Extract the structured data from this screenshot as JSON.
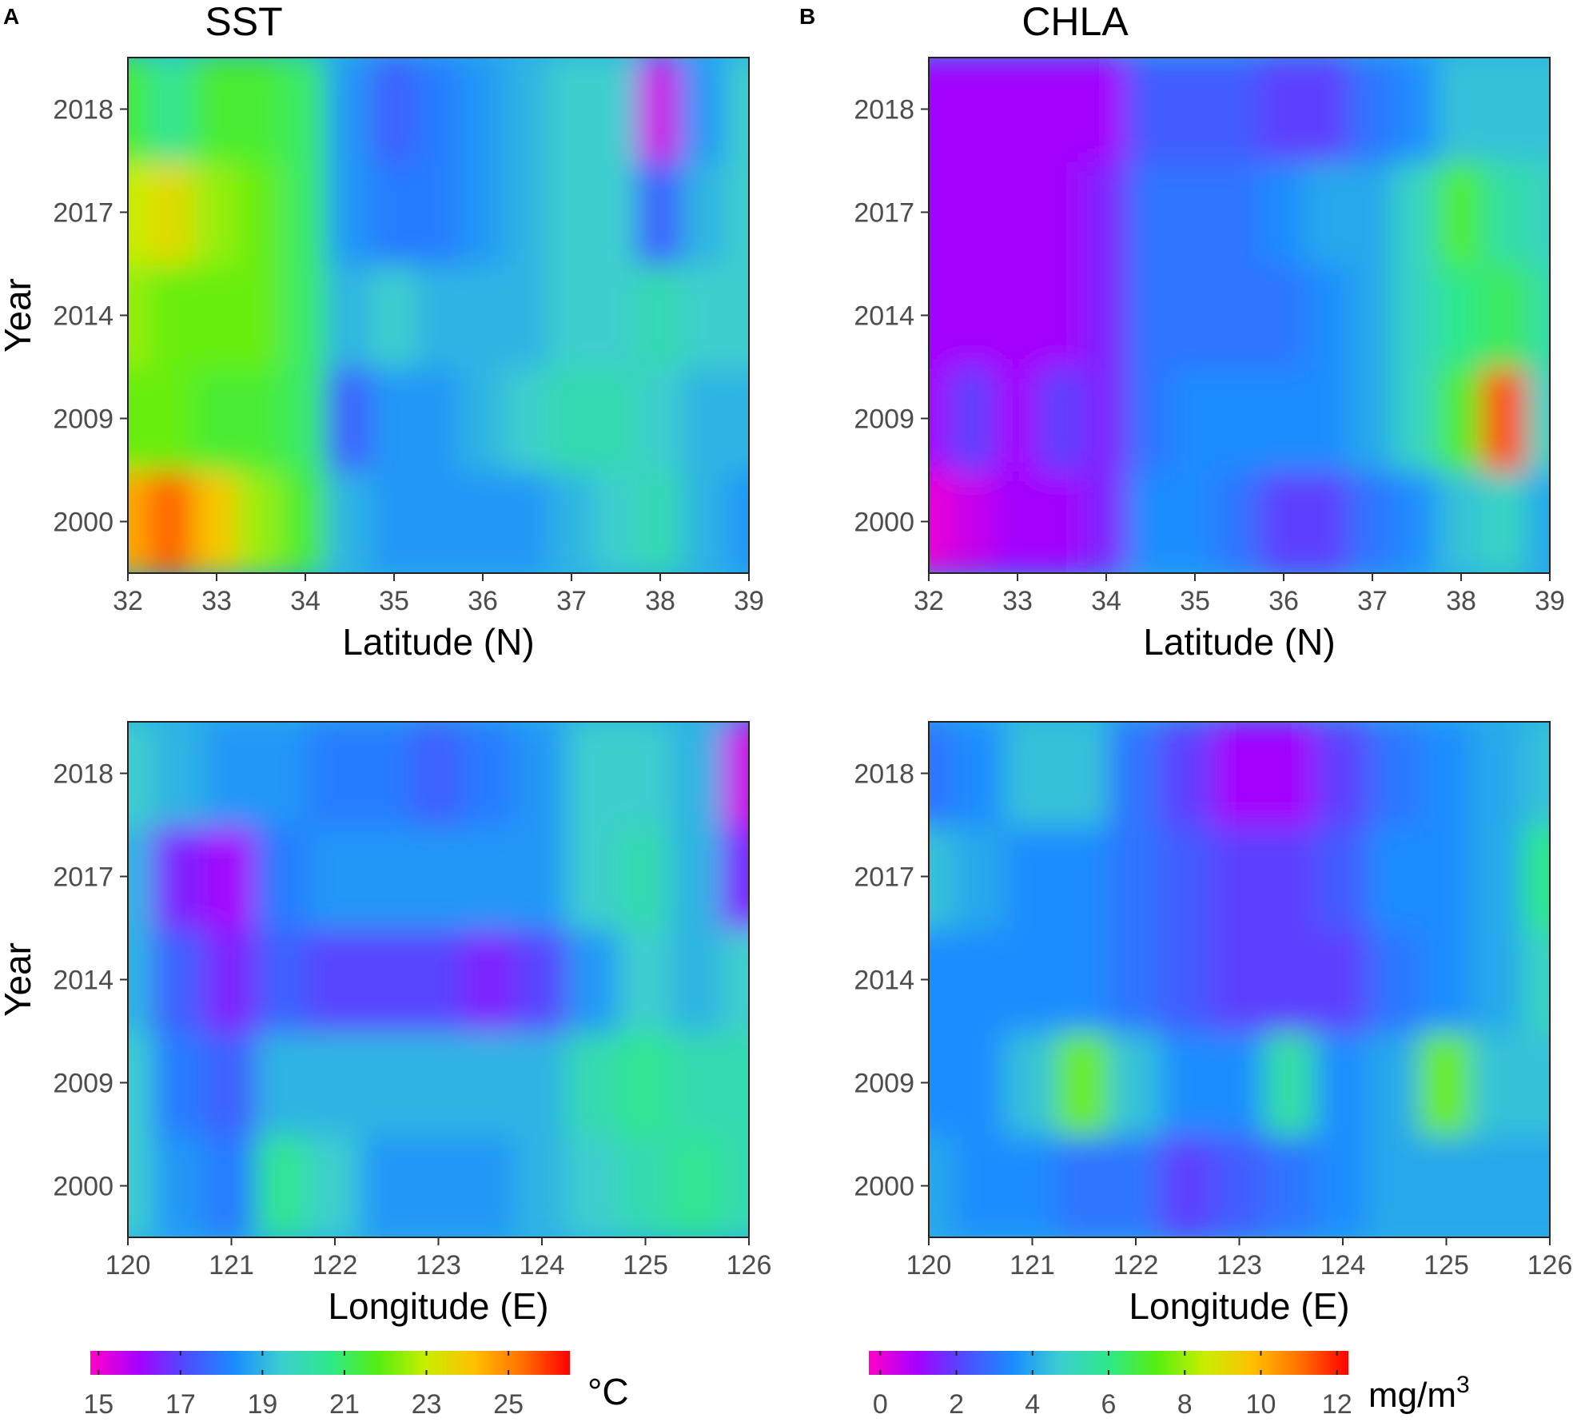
{
  "panels": [
    {
      "label": "A",
      "title": "SST"
    },
    {
      "label": "B",
      "title": "CHLA"
    }
  ],
  "colorbars": [
    {
      "unit": "°C",
      "ticks": [
        15,
        17,
        19,
        21,
        23,
        25
      ],
      "min": 14.8,
      "max": 26.5
    },
    {
      "unit_base": "mg/m",
      "unit_sup": "3",
      "ticks": [
        0,
        2,
        4,
        6,
        8,
        10,
        12
      ],
      "min": -0.3,
      "max": 12.3
    }
  ],
  "palette": [
    "#ff00c8",
    "#a600ff",
    "#4d4dff",
    "#1a8cff",
    "#3ccfcf",
    "#2ee88a",
    "#55ee10",
    "#c8ee00",
    "#ffc000",
    "#ff7000",
    "#ff0000"
  ],
  "chart_data": [
    {
      "type": "heatmap",
      "variable": "SST",
      "title": "SST",
      "xlabel": "Latitude (N)",
      "ylabel": "Year",
      "x_ticks": [
        32,
        33,
        34,
        35,
        36,
        37,
        38,
        39
      ],
      "y_ticks": [
        "2000",
        "2009",
        "2014",
        "2017",
        "2018"
      ],
      "x": [
        32,
        32.5,
        33,
        33.5,
        34,
        34.5,
        35,
        35.5,
        36,
        36.5,
        37,
        37.5,
        38,
        38.5,
        39
      ],
      "y": [
        "2000",
        "2009",
        "2014",
        "2017",
        "2018"
      ],
      "z": [
        [
          24.5,
          25.5,
          24.0,
          22.5,
          21.5,
          19.0,
          18.5,
          18.5,
          18.5,
          18.5,
          19.0,
          19.5,
          20.0,
          19.0,
          18.5
        ],
        [
          22.0,
          22.0,
          21.5,
          21.5,
          21.0,
          17.5,
          18.5,
          18.5,
          19.0,
          19.5,
          20.0,
          20.0,
          19.5,
          19.0,
          19.0
        ],
        [
          22.5,
          22.0,
          22.0,
          22.0,
          21.0,
          19.0,
          19.5,
          19.0,
          19.0,
          19.0,
          19.5,
          19.5,
          20.0,
          19.5,
          19.5
        ],
        [
          23.0,
          23.5,
          22.5,
          22.0,
          21.0,
          18.5,
          18.0,
          18.0,
          18.5,
          19.0,
          19.5,
          19.5,
          17.5,
          19.0,
          19.5
        ],
        [
          21.5,
          20.5,
          21.5,
          21.5,
          21.0,
          18.5,
          17.5,
          18.0,
          18.5,
          19.0,
          19.5,
          19.5,
          15.5,
          18.5,
          19.5
        ]
      ]
    },
    {
      "type": "heatmap",
      "variable": "CHLA",
      "title": "CHLA",
      "xlabel": "Latitude (N)",
      "ylabel": "Year",
      "x_ticks": [
        32,
        33,
        34,
        35,
        36,
        37,
        38,
        39
      ],
      "y_ticks": [
        "2000",
        "2009",
        "2014",
        "2017",
        "2018"
      ],
      "x": [
        32,
        32.5,
        33,
        33.5,
        34,
        34.5,
        35,
        35.5,
        36,
        36.5,
        37,
        37.5,
        38,
        38.5,
        39
      ],
      "y": [
        "2000",
        "2009",
        "2014",
        "2017",
        "2018"
      ],
      "z": [
        [
          0.0,
          0.5,
          1.0,
          1.0,
          1.5,
          3.5,
          3.5,
          3.0,
          2.0,
          2.0,
          3.0,
          3.5,
          4.5,
          5.0,
          4.0
        ],
        [
          1.0,
          2.0,
          1.0,
          2.0,
          1.5,
          3.0,
          3.5,
          3.5,
          3.5,
          3.5,
          4.0,
          5.0,
          7.0,
          11.5,
          5.0
        ],
        [
          1.0,
          1.0,
          1.0,
          1.0,
          1.5,
          3.0,
          3.0,
          3.0,
          3.0,
          3.5,
          4.0,
          5.0,
          6.0,
          6.5,
          5.5
        ],
        [
          1.0,
          1.0,
          1.0,
          1.0,
          1.5,
          3.0,
          3.0,
          3.0,
          3.5,
          4.0,
          4.0,
          5.0,
          7.0,
          5.5,
          5.0
        ],
        [
          1.0,
          1.0,
          1.0,
          1.0,
          1.0,
          2.5,
          2.5,
          2.5,
          2.0,
          2.0,
          3.0,
          3.5,
          4.5,
          4.5,
          4.5
        ]
      ]
    },
    {
      "type": "heatmap",
      "variable": "SST",
      "xlabel": "Longitude (E)",
      "ylabel": "Year",
      "x_ticks": [
        120,
        121,
        122,
        123,
        124,
        125,
        126
      ],
      "y_ticks": [
        "2000",
        "2009",
        "2014",
        "2017",
        "2018"
      ],
      "x": [
        120,
        120.5,
        121,
        121.5,
        122,
        122.5,
        123,
        123.5,
        124,
        124.5,
        125,
        125.5,
        126
      ],
      "y": [
        "2000",
        "2009",
        "2014",
        "2017",
        "2018"
      ],
      "z": [
        [
          19.5,
          18.5,
          18.0,
          20.5,
          19.5,
          18.5,
          18.5,
          18.5,
          19.0,
          19.5,
          20.0,
          20.5,
          20.0
        ],
        [
          19.5,
          18.0,
          17.5,
          19.0,
          19.0,
          19.0,
          19.0,
          19.0,
          19.0,
          20.0,
          20.5,
          20.0,
          20.0
        ],
        [
          19.0,
          17.5,
          16.5,
          17.5,
          17.0,
          17.0,
          17.0,
          16.5,
          17.0,
          18.5,
          19.5,
          19.0,
          19.5
        ],
        [
          19.0,
          16.5,
          16.0,
          18.0,
          18.5,
          18.5,
          18.5,
          18.5,
          18.5,
          19.5,
          20.0,
          19.0,
          16.5
        ],
        [
          19.5,
          19.0,
          18.5,
          18.5,
          18.0,
          18.0,
          17.5,
          18.0,
          18.5,
          19.5,
          19.5,
          19.0,
          15.5
        ]
      ]
    },
    {
      "type": "heatmap",
      "variable": "CHLA",
      "xlabel": "Longitude (E)",
      "ylabel": "Year",
      "x_ticks": [
        120,
        121,
        122,
        123,
        124,
        125,
        126
      ],
      "y_ticks": [
        "2000",
        "2009",
        "2014",
        "2017",
        "2018"
      ],
      "x": [
        120,
        120.5,
        121,
        121.5,
        122,
        122.5,
        123,
        123.5,
        124,
        124.5,
        125,
        125.5,
        126
      ],
      "y": [
        "2000",
        "2009",
        "2014",
        "2017",
        "2018"
      ],
      "z": [
        [
          4.0,
          3.5,
          3.5,
          3.0,
          3.0,
          2.0,
          2.5,
          3.0,
          3.5,
          4.0,
          4.0,
          4.0,
          4.0
        ],
        [
          3.5,
          3.5,
          4.5,
          7.5,
          4.5,
          3.5,
          3.5,
          5.5,
          3.5,
          4.0,
          7.5,
          4.5,
          4.5
        ],
        [
          3.5,
          3.5,
          3.5,
          3.5,
          3.0,
          2.5,
          2.0,
          2.0,
          2.0,
          3.0,
          3.5,
          4.0,
          5.0
        ],
        [
          4.5,
          4.0,
          3.5,
          3.5,
          3.0,
          2.5,
          2.0,
          2.0,
          2.5,
          3.5,
          3.5,
          4.0,
          6.0
        ],
        [
          3.0,
          3.5,
          4.5,
          4.5,
          3.0,
          2.0,
          1.0,
          1.0,
          2.0,
          3.0,
          3.5,
          4.0,
          4.5
        ]
      ]
    }
  ]
}
